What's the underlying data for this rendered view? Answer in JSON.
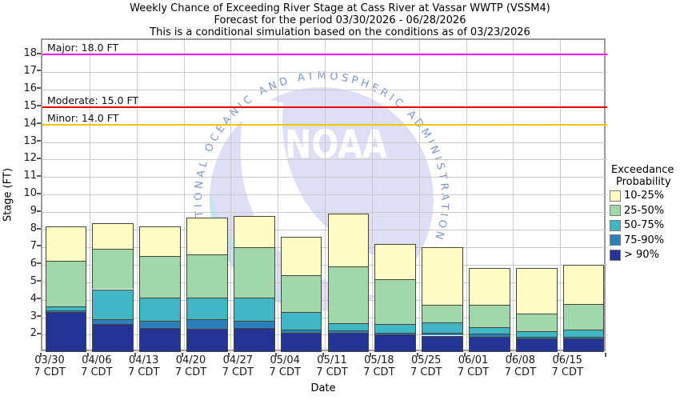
{
  "title": {
    "line1": "Weekly Chance of Exceeding River Stage at Cass River at Vassar WWTP (VSSM4)",
    "line2": "Forecast for the period 03/30/2026 - 06/28/2026",
    "line3": "This is a conditional simulation based on the conditions as of 03/23/2026"
  },
  "axes": {
    "ylabel": "Stage (FT)",
    "xlabel": "Date",
    "yticks": [
      2,
      3,
      4,
      5,
      6,
      7,
      8,
      9,
      10,
      11,
      12,
      13,
      14,
      15,
      16,
      17,
      18
    ],
    "x_sublabel": "7 CDT"
  },
  "thresholds": [
    {
      "name": "major",
      "label": "Major: 18.0 FT",
      "value": 18,
      "color": "#ff00ff"
    },
    {
      "name": "moderate",
      "label": "Moderate: 15.0 FT",
      "value": 15,
      "color": "#ee0000"
    },
    {
      "name": "minor",
      "label": "Minor: 14.0 FT",
      "value": 14,
      "color": "#f5c400"
    }
  ],
  "legend": {
    "title_line1": "Exceedance",
    "title_line2": "Probability",
    "items": [
      {
        "label": "10-25%",
        "color": "#fdfcc5"
      },
      {
        "label": "25-50%",
        "color": "#a1d7ab"
      },
      {
        "label": "50-75%",
        "color": "#41b6c4"
      },
      {
        "label": "75-90%",
        "color": "#2c7fb8"
      },
      {
        "label": "> 90%",
        "color": "#253494"
      }
    ]
  },
  "watermark": {
    "arc_text": "NATIONAL OCEANIC AND ATMOSPHERIC ADMINISTRATION",
    "center_text": "NOAA"
  },
  "chart_data": {
    "type": "bar",
    "stacked": true,
    "title": "Weekly Chance of Exceeding River Stage at Cass River at Vassar WWTP (VSSM4)",
    "xlabel": "Date",
    "ylabel": "Stage (FT)",
    "ylim": [
      1.0,
      18.85
    ],
    "grid": true,
    "legend_position": "right",
    "baseline_stage": 1.0,
    "categories": [
      "03/30",
      "04/06",
      "04/13",
      "04/20",
      "04/27",
      "05/04",
      "05/11",
      "05/18",
      "05/25",
      "06/01",
      "06/08",
      "06/15"
    ],
    "category_sublabel": "7 CDT",
    "series": [
      {
        "name": "> 90%",
        "color": "#253494",
        "stage_top": [
          3.3,
          2.6,
          2.4,
          2.35,
          2.4,
          2.1,
          2.1,
          2.0,
          1.95,
          1.9,
          1.8,
          1.8
        ]
      },
      {
        "name": "75-90%",
        "color": "#2c7fb8",
        "stage_top": [
          3.4,
          2.9,
          2.8,
          2.9,
          2.8,
          2.3,
          2.25,
          2.1,
          2.1,
          2.05,
          1.9,
          1.9
        ]
      },
      {
        "name": "50-75%",
        "color": "#41b6c4",
        "stage_top": [
          3.6,
          4.6,
          4.1,
          4.1,
          4.1,
          3.3,
          2.65,
          2.6,
          2.7,
          2.45,
          2.2,
          2.3
        ]
      },
      {
        "name": "25-50%",
        "color": "#a1d7ab",
        "stage_top": [
          6.2,
          6.9,
          6.5,
          6.6,
          7.0,
          5.4,
          5.9,
          5.15,
          3.7,
          3.7,
          3.2,
          3.75
        ]
      },
      {
        "name": "10-25%",
        "color": "#fdfcc5",
        "stage_top": [
          8.2,
          8.35,
          8.2,
          8.7,
          8.8,
          7.6,
          8.9,
          7.2,
          7.0,
          5.8,
          5.8,
          6.0
        ]
      }
    ]
  }
}
